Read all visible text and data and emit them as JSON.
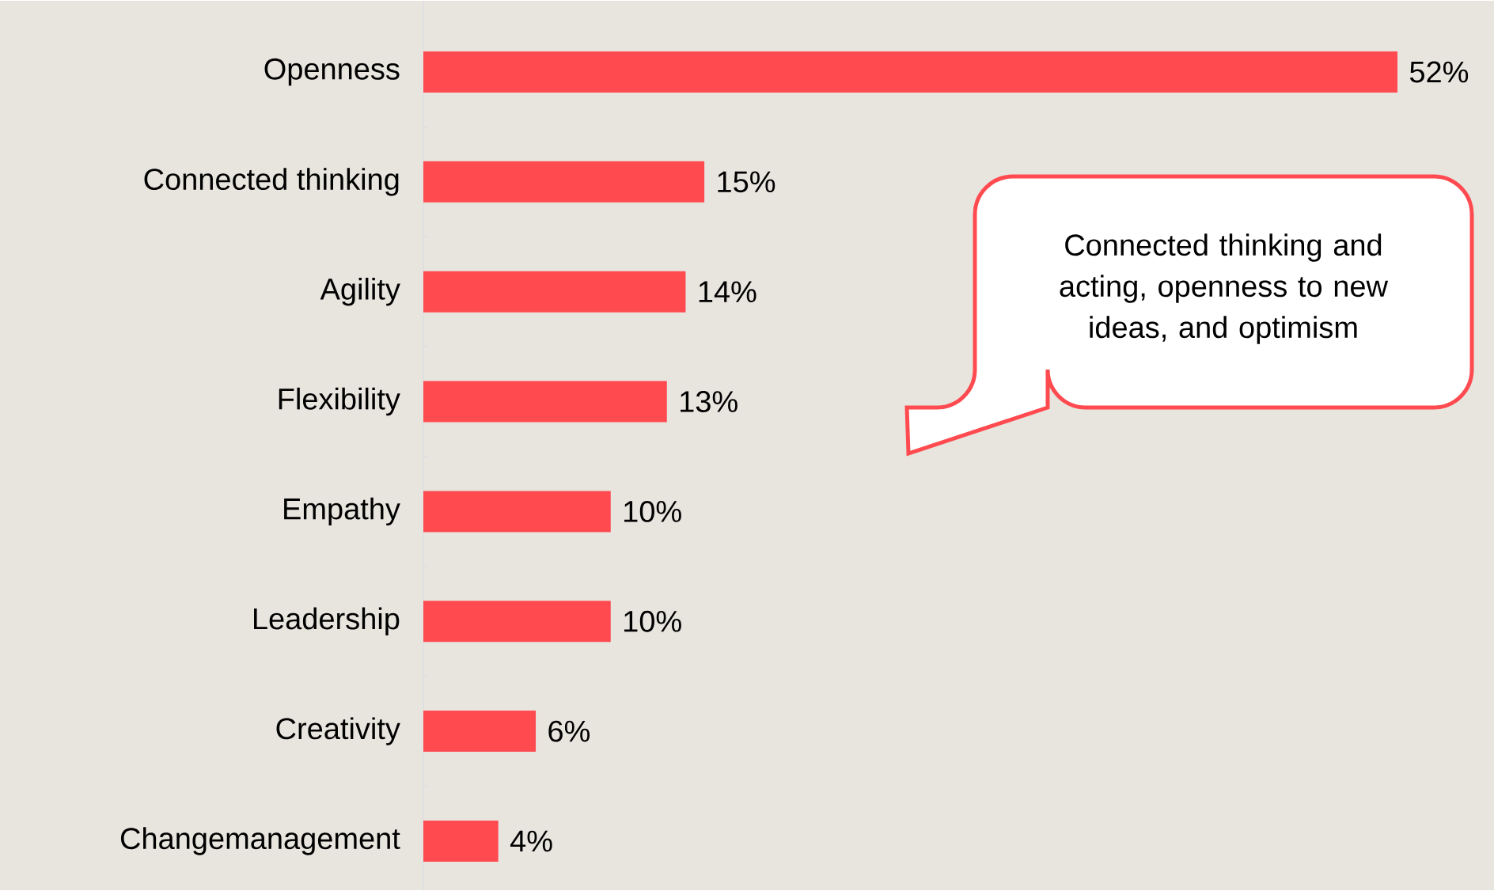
{
  "chart_data": {
    "type": "bar",
    "orientation": "horizontal",
    "color": "#ff4b50",
    "categories": [
      "Openness",
      "Connected thinking",
      "Agility",
      "Flexibility",
      "Empathy",
      "Leadership",
      "Creativity",
      "Changemanagement"
    ],
    "values": [
      52,
      15,
      14,
      13,
      10,
      10,
      6,
      4
    ],
    "value_labels": [
      "52%",
      "15%",
      "14%",
      "13%",
      "10%",
      "10%",
      "6%",
      "4%"
    ],
    "annotations": [
      "Connected thinking and acting, openness to new ideas, and optimism"
    ]
  }
}
